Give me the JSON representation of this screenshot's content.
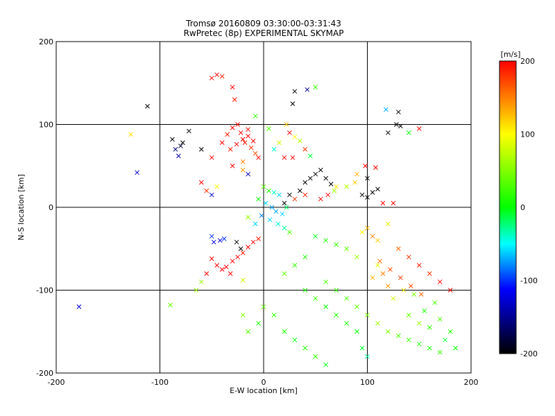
{
  "chart_data": {
    "type": "scatter",
    "title": "Tromsø 20160809 03:30:00-03:31:43",
    "subtitle": "RwPretec (8p) EXPERIMENTAL SKYMAP",
    "xlabel": "E-W location [km]",
    "ylabel": "N-S location [km]",
    "xlim": [
      -200,
      200
    ],
    "ylim": [
      -200,
      200
    ],
    "xticks": [
      "-200",
      "-100",
      "0",
      "100",
      "200"
    ],
    "yticks": [
      "-200",
      "-100",
      "0",
      "100",
      "200"
    ],
    "grid": true,
    "colorbar": {
      "label": "[m/s]",
      "range": [
        -200,
        200
      ],
      "ticks": [
        "200",
        "100",
        "0",
        "-100",
        "-200"
      ],
      "colors": [
        "#ff0000",
        "#ffff00",
        "#00ff00",
        "#00ffff",
        "#0000ff",
        "#000000"
      ]
    },
    "series": [
      {
        "values_note": "marker x = larger detections, + = smaller detections; color = velocity",
        "points": [
          [
            -112,
            122,
            -200
          ],
          [
            -80,
            74,
            -180
          ],
          [
            -85,
            70,
            -160
          ],
          [
            -82,
            62,
            -140
          ],
          [
            -78,
            78,
            -200
          ],
          [
            -88,
            82,
            -200
          ],
          [
            -72,
            92,
            -200
          ],
          [
            -60,
            70,
            -200
          ],
          [
            -122,
            42,
            -130
          ],
          [
            -128,
            88,
            110
          ],
          [
            -50,
            156,
            200
          ],
          [
            -45,
            160,
            200
          ],
          [
            -40,
            158,
            190
          ],
          [
            -30,
            145,
            200
          ],
          [
            -28,
            130,
            190
          ],
          [
            -25,
            100,
            200
          ],
          [
            -22,
            90,
            200
          ],
          [
            -20,
            82,
            200
          ],
          [
            -18,
            78,
            190
          ],
          [
            -15,
            86,
            200
          ],
          [
            -26,
            76,
            200
          ],
          [
            -12,
            72,
            180
          ],
          [
            -30,
            96,
            200
          ],
          [
            -35,
            88,
            190
          ],
          [
            -15,
            94,
            200
          ],
          [
            -10,
            80,
            200
          ],
          [
            -8,
            65,
            170
          ],
          [
            -32,
            70,
            190
          ],
          [
            -40,
            78,
            200
          ],
          [
            -50,
            60,
            200
          ],
          [
            -20,
            55,
            150
          ],
          [
            -5,
            60,
            200
          ],
          [
            -30,
            50,
            200
          ],
          [
            -20,
            45,
            140
          ],
          [
            -15,
            40,
            -140
          ],
          [
            -45,
            25,
            100
          ],
          [
            -50,
            15,
            -130
          ],
          [
            -55,
            20,
            180
          ],
          [
            -60,
            30,
            200
          ],
          [
            -36,
            -72,
            200
          ],
          [
            -30,
            -65,
            200
          ],
          [
            -25,
            -60,
            200
          ],
          [
            -20,
            -55,
            190
          ],
          [
            -15,
            -48,
            200
          ],
          [
            -10,
            -42,
            200
          ],
          [
            -5,
            -38,
            190
          ],
          [
            -40,
            -75,
            200
          ],
          [
            -45,
            -70,
            200
          ],
          [
            -50,
            -62,
            200
          ],
          [
            -42,
            -40,
            -130
          ],
          [
            -48,
            -42,
            -120
          ],
          [
            -38,
            -38,
            -100
          ],
          [
            -26,
            -42,
            -200
          ],
          [
            -22,
            -50,
            -200
          ],
          [
            -50,
            -35,
            -100
          ],
          [
            -55,
            -80,
            200
          ],
          [
            -32,
            -80,
            200
          ],
          [
            -20,
            -88,
            80
          ],
          [
            -60,
            -90,
            60
          ],
          [
            -178,
            -120,
            -120
          ],
          [
            -90,
            -118,
            40
          ],
          [
            -65,
            -100,
            60
          ],
          [
            0,
            25,
            40
          ],
          [
            5,
            20,
            10
          ],
          [
            10,
            18,
            -40
          ],
          [
            15,
            15,
            -60
          ],
          [
            -5,
            10,
            0
          ],
          [
            2,
            5,
            -60
          ],
          [
            8,
            0,
            -70
          ],
          [
            12,
            -5,
            -70
          ],
          [
            18,
            -8,
            -60
          ],
          [
            -2,
            -10,
            -80
          ],
          [
            6,
            -15,
            -60
          ],
          [
            14,
            -20,
            -40
          ],
          [
            20,
            -25,
            -30
          ],
          [
            25,
            -30,
            30
          ],
          [
            -8,
            -20,
            -60
          ],
          [
            -15,
            -12,
            60
          ],
          [
            22,
            0,
            -20
          ],
          [
            30,
            10,
            180
          ],
          [
            35,
            20,
            -200
          ],
          [
            40,
            30,
            -200
          ],
          [
            45,
            35,
            -200
          ],
          [
            50,
            40,
            -200
          ],
          [
            55,
            45,
            -200
          ],
          [
            60,
            35,
            -200
          ],
          [
            65,
            28,
            -200
          ],
          [
            70,
            25,
            110
          ],
          [
            25,
            15,
            -200
          ],
          [
            20,
            5,
            -200
          ],
          [
            40,
            15,
            190
          ],
          [
            55,
            10,
            200
          ],
          [
            62,
            15,
            200
          ],
          [
            68,
            20,
            60
          ],
          [
            80,
            25,
            70
          ],
          [
            95,
            15,
            -200
          ],
          [
            100,
            12,
            -200
          ],
          [
            105,
            18,
            -200
          ],
          [
            110,
            22,
            -200
          ],
          [
            98,
            50,
            200
          ],
          [
            108,
            48,
            200
          ],
          [
            90,
            40,
            130
          ],
          [
            115,
            5,
            200
          ],
          [
            125,
            5,
            200
          ],
          [
            100,
            35,
            -200
          ],
          [
            88,
            30,
            120
          ],
          [
            42,
            142,
            -150
          ],
          [
            50,
            145,
            20
          ],
          [
            30,
            140,
            -200
          ],
          [
            28,
            125,
            -200
          ],
          [
            22,
            100,
            120
          ],
          [
            25,
            90,
            200
          ],
          [
            30,
            85,
            100
          ],
          [
            35,
            80,
            70
          ],
          [
            28,
            60,
            200
          ],
          [
            20,
            60,
            200
          ],
          [
            40,
            70,
            180
          ],
          [
            45,
            62,
            -10
          ],
          [
            10,
            70,
            -40
          ],
          [
            5,
            95,
            30
          ],
          [
            15,
            78,
            80
          ],
          [
            -8,
            110,
            20
          ],
          [
            118,
            118,
            -70
          ],
          [
            128,
            100,
            -200
          ],
          [
            132,
            98,
            -200
          ],
          [
            120,
            90,
            -200
          ],
          [
            140,
            90,
            0
          ],
          [
            150,
            95,
            200
          ],
          [
            130,
            115,
            -200
          ],
          [
            100,
            -25,
            130
          ],
          [
            105,
            -35,
            150
          ],
          [
            110,
            -40,
            120
          ],
          [
            95,
            -30,
            100
          ],
          [
            120,
            -20,
            90
          ],
          [
            130,
            -50,
            160
          ],
          [
            140,
            -60,
            180
          ],
          [
            150,
            -70,
            190
          ],
          [
            160,
            -80,
            180
          ],
          [
            170,
            -90,
            200
          ],
          [
            180,
            -100,
            200
          ],
          [
            110,
            -70,
            90
          ],
          [
            90,
            -60,
            60
          ],
          [
            80,
            -50,
            40
          ],
          [
            70,
            -45,
            20
          ],
          [
            60,
            -40,
            10
          ],
          [
            50,
            -35,
            -5
          ],
          [
            40,
            -60,
            10
          ],
          [
            30,
            -70,
            20
          ],
          [
            20,
            -80,
            40
          ],
          [
            60,
            -90,
            30
          ],
          [
            70,
            -100,
            20
          ],
          [
            80,
            -110,
            30
          ],
          [
            90,
            -120,
            40
          ],
          [
            100,
            -130,
            50
          ],
          [
            110,
            -140,
            60
          ],
          [
            120,
            -150,
            50
          ],
          [
            130,
            -155,
            30
          ],
          [
            140,
            -160,
            20
          ],
          [
            150,
            -165,
            10
          ],
          [
            160,
            -170,
            5
          ],
          [
            170,
            -175,
            20
          ],
          [
            90,
            -150,
            0
          ],
          [
            95,
            -170,
            -10
          ],
          [
            100,
            -180,
            -30
          ],
          [
            40,
            -100,
            10
          ],
          [
            50,
            -110,
            20
          ],
          [
            60,
            -120,
            0
          ],
          [
            70,
            -130,
            10
          ],
          [
            80,
            -140,
            5
          ],
          [
            -20,
            -130,
            50
          ],
          [
            -15,
            -150,
            30
          ],
          [
            -5,
            -140,
            10
          ],
          [
            0,
            -120,
            40
          ],
          [
            10,
            -130,
            20
          ],
          [
            20,
            -150,
            10
          ],
          [
            30,
            -160,
            0
          ],
          [
            40,
            -170,
            10
          ],
          [
            50,
            -180,
            20
          ],
          [
            60,
            -190,
            -5
          ],
          [
            170,
            -135,
            30
          ],
          [
            180,
            -150,
            10
          ],
          [
            185,
            -170,
            0
          ],
          [
            175,
            -160,
            -10
          ],
          [
            160,
            -145,
            20
          ],
          [
            140,
            -130,
            40
          ],
          [
            150,
            -140,
            60
          ],
          [
            165,
            -115,
            30
          ],
          [
            155,
            -125,
            10
          ],
          [
            145,
            -105,
            50
          ],
          [
            125,
            -110,
            80
          ],
          [
            135,
            -100,
            110
          ],
          [
            120,
            -95,
            140
          ],
          [
            115,
            -80,
            150
          ],
          [
            105,
            -85,
            130
          ],
          [
            112,
            -65,
            160
          ],
          [
            122,
            -75,
            170
          ],
          [
            132,
            -85,
            180
          ],
          [
            142,
            -95,
            170
          ],
          [
            152,
            -105,
            160
          ]
        ]
      }
    ]
  }
}
